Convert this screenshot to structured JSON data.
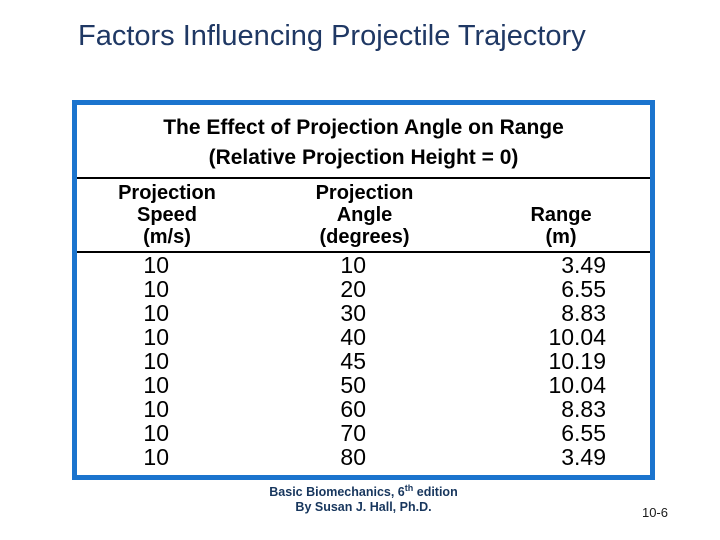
{
  "slide": {
    "title": "Factors Influencing Projectile Trajectory",
    "page_number": "10-6"
  },
  "table_box": {
    "title_line1": "The Effect of Projection Angle on Range",
    "title_line2": "(Relative Projection Height = 0)",
    "columns": [
      {
        "lines": [
          "Projection",
          "Speed",
          "(m/s)"
        ]
      },
      {
        "lines": [
          "Projection",
          "Angle",
          "(degrees)"
        ]
      },
      {
        "lines": [
          "Range",
          "(m)"
        ]
      }
    ],
    "rows": [
      [
        "10",
        "10",
        "3.49"
      ],
      [
        "10",
        "20",
        "6.55"
      ],
      [
        "10",
        "30",
        "8.83"
      ],
      [
        "10",
        "40",
        "10.04"
      ],
      [
        "10",
        "45",
        "10.19"
      ],
      [
        "10",
        "50",
        "10.04"
      ],
      [
        "10",
        "60",
        "8.83"
      ],
      [
        "10",
        "70",
        "6.55"
      ],
      [
        "10",
        "80",
        "3.49"
      ]
    ]
  },
  "footer": {
    "line1_pre": "Basic Biomechanics, 6",
    "line1_sup": "th",
    "line1_post": " edition",
    "line2": "By Susan J. Hall, Ph.D."
  },
  "colors": {
    "title": "#1F3864",
    "box_border": "#1B74CE",
    "footer": "#17365D",
    "table_text": "#000000"
  },
  "chart_data": {
    "type": "table",
    "title": "The Effect of Projection Angle on Range (Relative Projection Height = 0)",
    "columns": [
      "Projection Speed (m/s)",
      "Projection Angle (degrees)",
      "Range (m)"
    ],
    "rows": [
      [
        10,
        10,
        3.49
      ],
      [
        10,
        20,
        6.55
      ],
      [
        10,
        30,
        8.83
      ],
      [
        10,
        40,
        10.04
      ],
      [
        10,
        45,
        10.19
      ],
      [
        10,
        50,
        10.04
      ],
      [
        10,
        60,
        8.83
      ],
      [
        10,
        70,
        6.55
      ],
      [
        10,
        80,
        3.49
      ]
    ]
  }
}
